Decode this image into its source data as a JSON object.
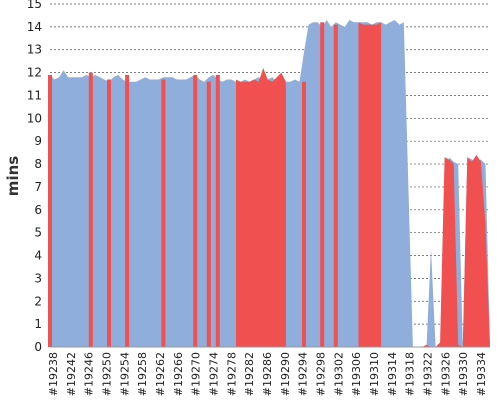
{
  "chart_data": {
    "type": "area",
    "title": "",
    "xlabel": "",
    "ylabel": "mins",
    "ylim": [
      0,
      15
    ],
    "yticks": [
      "0",
      "1",
      "2",
      "3",
      "4",
      "5",
      "6",
      "7",
      "8",
      "9",
      "10",
      "11",
      "12",
      "13",
      "14",
      "15"
    ],
    "grid": true,
    "x_start": 19238,
    "x_end": 19935,
    "tick_labels": [
      "#19238",
      "#19242",
      "#19246",
      "#19250",
      "#19254",
      "#19258",
      "#19262",
      "#19266",
      "#19270",
      "#19274",
      "#19278",
      "#19282",
      "#19286",
      "#19290",
      "#19294",
      "#19298",
      "#19302",
      "#19306",
      "#19310",
      "#19314",
      "#19318",
      "#19322",
      "#19326",
      "#19330",
      "#19334"
    ],
    "series": [
      {
        "status": "passed",
        "color": "#8faedb",
        "points": [
          [
            19238,
            11.9
          ],
          [
            19239,
            11.7
          ],
          [
            19240,
            11.8
          ],
          [
            19241,
            12.1
          ],
          [
            19242,
            11.8
          ],
          [
            19243,
            11.8
          ],
          [
            19244,
            11.8
          ],
          [
            19245,
            11.8
          ],
          [
            19246,
            11.9
          ],
          [
            19247,
            11.8
          ],
          [
            19248,
            11.9
          ],
          [
            19249,
            11.8
          ],
          [
            19250,
            11.7
          ],
          [
            19251,
            11.6
          ],
          [
            19252,
            11.8
          ],
          [
            19253,
            11.9
          ],
          [
            19254,
            11.7
          ],
          [
            19255,
            11.6
          ],
          [
            19256,
            11.6
          ],
          [
            19257,
            11.6
          ],
          [
            19258,
            11.7
          ],
          [
            19259,
            11.8
          ],
          [
            19260,
            11.7
          ],
          [
            19261,
            11.7
          ],
          [
            19262,
            11.7
          ],
          [
            19263,
            11.8
          ],
          [
            19264,
            11.8
          ],
          [
            19265,
            11.8
          ],
          [
            19266,
            11.7
          ],
          [
            19267,
            11.7
          ],
          [
            19268,
            11.7
          ],
          [
            19269,
            11.8
          ],
          [
            19270,
            11.9
          ],
          [
            19271,
            11.7
          ],
          [
            19272,
            11.6
          ],
          [
            19273,
            11.8
          ],
          [
            19274,
            11.9
          ],
          [
            19275,
            11.7
          ],
          [
            19276,
            11.6
          ],
          [
            19277,
            11.7
          ],
          [
            19278,
            11.7
          ],
          [
            19279,
            11.6
          ],
          [
            19280,
            11.6
          ],
          [
            19281,
            11.7
          ],
          [
            19282,
            11.6
          ],
          [
            19283,
            11.7
          ],
          [
            19284,
            11.8
          ],
          [
            19285,
            11.7
          ],
          [
            19286,
            11.7
          ],
          [
            19287,
            11.8
          ],
          [
            19288,
            11.6
          ],
          [
            19289,
            11.7
          ],
          [
            19290,
            11.6
          ],
          [
            19291,
            11.6
          ],
          [
            19292,
            11.7
          ],
          [
            19293,
            11.6
          ],
          [
            19294,
            12.9
          ],
          [
            19295,
            14.1
          ],
          [
            19296,
            14.2
          ],
          [
            19297,
            14.2
          ],
          [
            19298,
            14.0
          ],
          [
            19299,
            14.3
          ],
          [
            19300,
            14.0
          ],
          [
            19301,
            14.2
          ],
          [
            19302,
            14.1
          ],
          [
            19303,
            14.0
          ],
          [
            19304,
            14.3
          ],
          [
            19305,
            14.2
          ],
          [
            19306,
            14.2
          ],
          [
            19307,
            14.2
          ],
          [
            19308,
            14.2
          ],
          [
            19309,
            14.1
          ],
          [
            19310,
            14.2
          ],
          [
            19311,
            14.2
          ],
          [
            19312,
            14.1
          ],
          [
            19313,
            14.2
          ],
          [
            19314,
            14.3
          ],
          [
            19315,
            14.1
          ],
          [
            19316,
            14.2
          ],
          [
            19317,
            7.0
          ],
          [
            19318,
            0.0
          ],
          [
            19319,
            0.0
          ],
          [
            19320,
            0.0
          ],
          [
            19321,
            0.0
          ],
          [
            19322,
            4.3
          ],
          [
            19323,
            0.0
          ],
          [
            19324,
            0.0
          ],
          [
            19325,
            0.0
          ],
          [
            19326,
            8.3
          ],
          [
            19327,
            8.1
          ],
          [
            19328,
            8.0
          ],
          [
            19329,
            0.0
          ],
          [
            19330,
            8.3
          ],
          [
            19331,
            8.2
          ],
          [
            19332,
            8.1
          ],
          [
            19333,
            8.2
          ],
          [
            19334,
            8.0
          ],
          [
            19335,
            0.0
          ],
          [
            19935,
            8.2
          ]
        ]
      },
      {
        "status": "failed",
        "color": "#f05050",
        "spikes": [
          [
            19238,
            11.9
          ],
          [
            19247,
            12.0
          ],
          [
            19251,
            11.7
          ],
          [
            19255,
            11.9
          ],
          [
            19263,
            11.7
          ],
          [
            19270,
            11.9
          ],
          [
            19273,
            11.6
          ],
          [
            19275,
            11.9
          ],
          [
            19298,
            14.2
          ],
          [
            19301,
            14.1
          ],
          [
            19294,
            11.6
          ]
        ],
        "blocks": [
          {
            "points": [
              [
                19279,
                11.7
              ],
              [
                19280,
                11.6
              ],
              [
                19281,
                11.6
              ],
              [
                19282,
                11.6
              ],
              [
                19283,
                11.7
              ],
              [
                19284,
                11.6
              ],
              [
                19285,
                12.2
              ],
              [
                19286,
                11.7
              ],
              [
                19287,
                11.6
              ],
              [
                19288,
                11.8
              ],
              [
                19289,
                12.0
              ],
              [
                19290,
                11.6
              ]
            ]
          },
          {
            "points": [
              [
                19306,
                14.2
              ],
              [
                19307,
                14.1
              ],
              [
                19308,
                14.1
              ],
              [
                19309,
                14.1
              ],
              [
                19310,
                14.1
              ],
              [
                19311,
                14.2
              ]
            ]
          },
          {
            "points": [
              [
                19317,
                0.0
              ],
              [
                19318,
                0.0
              ],
              [
                19319,
                0.0
              ],
              [
                19320,
                0.0
              ],
              [
                19321,
                0.1
              ],
              [
                19322,
                0.0
              ],
              [
                19323,
                0.0
              ],
              [
                19324,
                0.2
              ],
              [
                19325,
                8.3
              ],
              [
                19326,
                8.2
              ],
              [
                19327,
                8.0
              ],
              [
                19328,
                0.1
              ],
              [
                19329,
                0.0
              ],
              [
                19330,
                8.3
              ],
              [
                19331,
                8.1
              ],
              [
                19332,
                8.4
              ],
              [
                19333,
                8.1
              ],
              [
                19334,
                5.3
              ],
              [
                19335,
                0.0
              ]
            ]
          },
          {
            "points": [
              [
                19934,
                8.1
              ],
              [
                19935,
                8.3
              ]
            ]
          }
        ]
      }
    ]
  }
}
